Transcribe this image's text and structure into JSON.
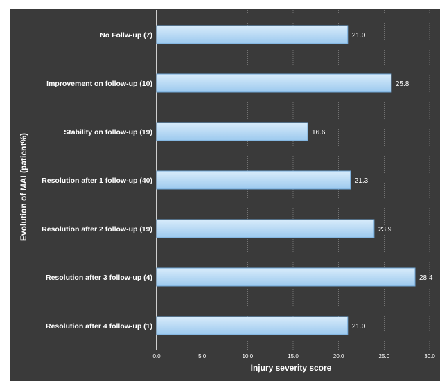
{
  "chart_data": {
    "type": "bar",
    "orientation": "horizontal",
    "categories": [
      "No Follw-up (7)",
      "Improvement on follow-up (10)",
      "Stability on follow-up (19)",
      "Resolution after 1 follow-up (40)",
      "Resolution after 2 follow-up (19)",
      "Resolution after 3 follow-up (4)",
      "Resolution after 4 follow-up (1)"
    ],
    "values": [
      21.0,
      25.8,
      16.6,
      21.3,
      23.9,
      28.4,
      21.0
    ],
    "value_labels": [
      "21.0",
      "25.8",
      "16.6",
      "21.3",
      "23.9",
      "28.4",
      "21.0"
    ],
    "xlabel": "Injury severity score",
    "ylabel": "Evolution of MAI (patient%)",
    "xlim": [
      0,
      30
    ],
    "xticks": [
      0,
      5,
      10,
      15,
      20,
      25,
      30
    ],
    "xtick_labels": [
      "0.0",
      "5.0",
      "10.0",
      "15.0",
      "20.0",
      "25.0",
      "30.0"
    ],
    "grid": "vertical",
    "legend": "none",
    "colors": {
      "background": "#3a3a3a",
      "bar_fill_top": "#d8ecfb",
      "bar_fill_bottom": "#9cc9ee",
      "bar_stroke": "#6fa6d6",
      "gridline": "#9a9a9a",
      "text": "#ffffff"
    }
  }
}
